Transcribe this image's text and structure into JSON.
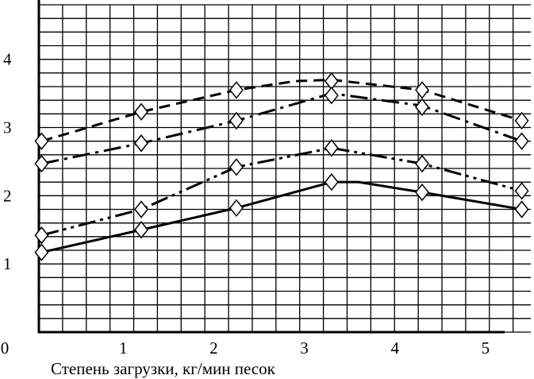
{
  "chart_data": {
    "type": "line",
    "xlabel": "Степень загрузки, кг/мин песок",
    "ylabel": "",
    "xlim": [
      0.07,
      5.5
    ],
    "ylim": [
      0,
      4.8
    ],
    "x_ticks": [
      {
        "value": 0,
        "label": "0"
      },
      {
        "value": 1,
        "label": "1"
      },
      {
        "value": 2,
        "label": "2"
      },
      {
        "value": 3,
        "label": "3"
      },
      {
        "value": 4,
        "label": "4"
      },
      {
        "value": 5,
        "label": "5"
      }
    ],
    "y_ticks": [
      {
        "value": 1,
        "label": "1"
      },
      {
        "value": 2,
        "label": "2"
      },
      {
        "value": 3,
        "label": "3"
      },
      {
        "value": 4,
        "label": "4"
      }
    ],
    "grid": true,
    "grid_x_step": 0.2617,
    "grid_y_step": 0.2,
    "marker": "diamond",
    "colors": {
      "line": "#000000",
      "grid": "#000000",
      "background": "#ffffff"
    },
    "series": [
      {
        "style": "dashed",
        "x": [
          0.1,
          1.2,
          2.25,
          3.3,
          4.3,
          5.4
        ],
        "y": [
          2.8,
          3.23,
          3.55,
          3.68,
          3.55,
          3.1
        ],
        "curve": [
          [
            0.1,
            2.8
          ],
          [
            1.2,
            3.23
          ],
          [
            2.25,
            3.55
          ],
          [
            2.9,
            3.68
          ],
          [
            3.3,
            3.7
          ],
          [
            4.3,
            3.55
          ],
          [
            5.4,
            3.1
          ]
        ]
      },
      {
        "style": "dash-dot",
        "x": [
          0.1,
          1.2,
          2.25,
          3.3,
          4.3,
          5.4
        ],
        "y": [
          2.47,
          2.77,
          3.1,
          3.47,
          3.3,
          2.8
        ],
        "curve": [
          [
            0.1,
            2.47
          ],
          [
            1.2,
            2.77
          ],
          [
            2.25,
            3.1
          ],
          [
            3.3,
            3.5
          ],
          [
            4.3,
            3.32
          ],
          [
            5.4,
            2.8
          ]
        ]
      },
      {
        "style": "dash-dot-dot",
        "x": [
          0.1,
          1.2,
          2.25,
          3.3,
          4.3,
          5.4
        ],
        "y": [
          1.42,
          1.8,
          2.42,
          2.7,
          2.47,
          2.07
        ],
        "curve": [
          [
            0.1,
            1.42
          ],
          [
            1.2,
            1.8
          ],
          [
            2.25,
            2.42
          ],
          [
            3.3,
            2.7
          ],
          [
            4.3,
            2.47
          ],
          [
            5.4,
            2.07
          ]
        ]
      },
      {
        "style": "solid",
        "x": [
          0.1,
          1.2,
          2.25,
          3.3,
          4.3,
          5.4
        ],
        "y": [
          1.17,
          1.5,
          1.82,
          2.2,
          2.05,
          1.8
        ],
        "curve": [
          [
            0.1,
            1.17
          ],
          [
            1.2,
            1.5
          ],
          [
            2.25,
            1.82
          ],
          [
            3.3,
            2.2
          ],
          [
            3.6,
            2.2
          ],
          [
            4.3,
            2.05
          ],
          [
            5.4,
            1.8
          ]
        ]
      }
    ]
  }
}
